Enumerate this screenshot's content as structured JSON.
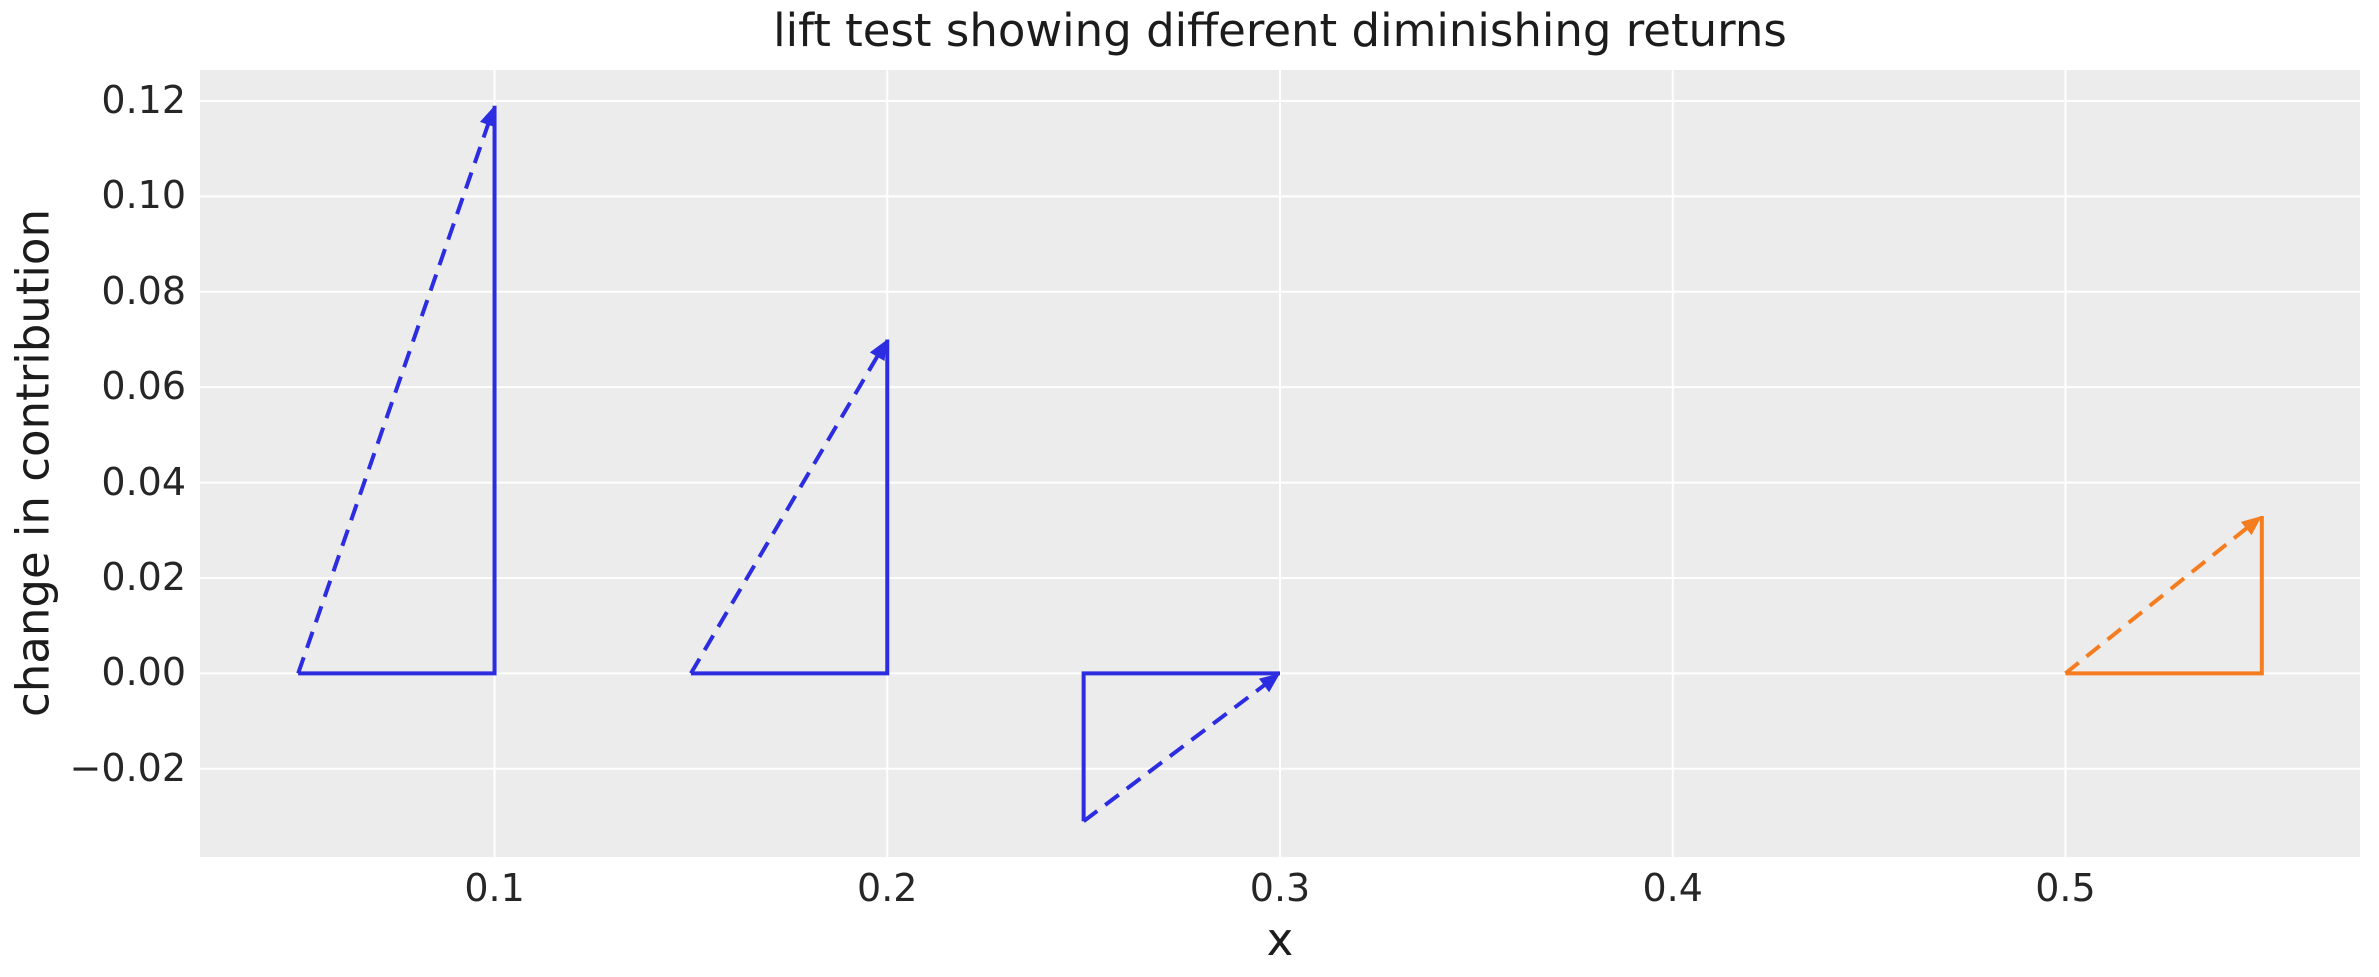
{
  "figure": {
    "title": "lift test showing different diminishing returns",
    "xlabel": "x",
    "ylabel": "change in contribution"
  },
  "colors": {
    "plot_background": "#ececec",
    "gridline": "#ffffff",
    "blue_series": "#2c2ce0",
    "orange_series": "#f57d20",
    "tick_text": "#262626",
    "label_text": "#1c1c1c"
  },
  "chart_data": {
    "type": "line",
    "title": "lift test showing different diminishing returns",
    "xlabel": "x",
    "ylabel": "change in contribution",
    "xlim": [
      0.025,
      0.575
    ],
    "ylim": [
      -0.0385,
      0.1265
    ],
    "grid": true,
    "legend": "none",
    "x_ticks": {
      "values": [
        0.1,
        0.2,
        0.3,
        0.4,
        0.5
      ],
      "labels": [
        "0.1",
        "0.2",
        "0.3",
        "0.4",
        "0.5"
      ]
    },
    "y_ticks": {
      "values": [
        0.12,
        0.1,
        0.08,
        0.06,
        0.04,
        0.02,
        0.0,
        -0.02
      ],
      "labels": [
        "0.12",
        "0.10",
        "0.08",
        "0.06",
        "0.04",
        "0.02",
        "0.00",
        "−0.02"
      ]
    },
    "triangles": [
      {
        "name": "lift-triangle-1",
        "color": "#2c2ce0",
        "x_range": [
          0.05,
          0.1
        ],
        "lift": 0.119,
        "dashed_arrow": {
          "from": [
            0.05,
            0.0
          ],
          "to": [
            0.1,
            0.119
          ]
        },
        "solid_path": [
          [
            0.05,
            0.0
          ],
          [
            0.1,
            0.0
          ],
          [
            0.1,
            0.119
          ]
        ]
      },
      {
        "name": "lift-triangle-2",
        "color": "#2c2ce0",
        "x_range": [
          0.15,
          0.2
        ],
        "lift": 0.07,
        "dashed_arrow": {
          "from": [
            0.15,
            0.0
          ],
          "to": [
            0.2,
            0.07
          ]
        },
        "solid_path": [
          [
            0.15,
            0.0
          ],
          [
            0.2,
            0.0
          ],
          [
            0.2,
            0.07
          ]
        ]
      },
      {
        "name": "lift-triangle-3",
        "color": "#2c2ce0",
        "x_range": [
          0.25,
          0.3
        ],
        "lift": -0.031,
        "dashed_arrow": {
          "from": [
            0.25,
            -0.031
          ],
          "to": [
            0.3,
            0.0
          ]
        },
        "solid_path": [
          [
            0.25,
            -0.031
          ],
          [
            0.25,
            0.0
          ],
          [
            0.3,
            0.0
          ]
        ]
      },
      {
        "name": "lift-triangle-4",
        "color": "#f57d20",
        "x_range": [
          0.5,
          0.55
        ],
        "lift": 0.033,
        "dashed_arrow": {
          "from": [
            0.5,
            0.0
          ],
          "to": [
            0.55,
            0.033
          ]
        },
        "solid_path": [
          [
            0.5,
            0.0
          ],
          [
            0.55,
            0.0
          ],
          [
            0.55,
            0.033
          ]
        ]
      }
    ]
  }
}
